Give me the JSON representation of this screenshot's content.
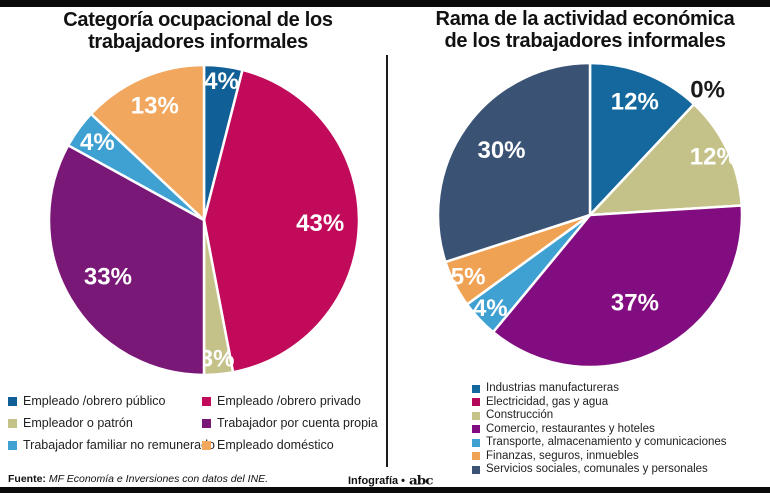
{
  "page": {
    "top_bar_color": "#0a0a0a",
    "bottom_bar_color": "#0a0a0a",
    "background": "#ffffff"
  },
  "footer": {
    "source_label": "Fuente:",
    "source_text": "MF Economía e Inversiones con datos del INE.",
    "credit_label": "Infografía •",
    "brand_logo_text": "abc"
  },
  "chart_data": [
    {
      "type": "pie",
      "title": "Categoría ocupacional de los trabajadores informales",
      "start_angle_deg": 0,
      "direction": "clockwise",
      "legend_position": "bottom-two-columns",
      "label_suffix": "%",
      "slices": [
        {
          "label": "Empleado /obrero público",
          "value": 4,
          "color": "#115f97",
          "label_color": "#ffffff",
          "label_r": 0.9
        },
        {
          "label": "Empleado /obrero privado",
          "value": 43,
          "color": "#c10a5a",
          "label_color": "#ffffff",
          "label_r": 0.75
        },
        {
          "label": "Empleador o patrón",
          "value": 3,
          "color": "#c5c289",
          "label_color": "#ffffff",
          "label_r": 0.9
        },
        {
          "label": "Trabajador por cuenta propia",
          "value": 33,
          "color": "#7a1878",
          "label_color": "#ffffff",
          "label_r": 0.72
        },
        {
          "label": "Trabajador familiar no remunerado",
          "value": 4,
          "color": "#3fa0d2",
          "label_color": "#ffffff",
          "label_r": 0.85
        },
        {
          "label": "Empleado doméstico",
          "value": 13,
          "color": "#f2a75f",
          "label_color": "#ffffff",
          "label_r": 0.8
        }
      ]
    },
    {
      "type": "pie",
      "title": "Rama de la actividad económica de los trabajadores informales",
      "start_angle_deg": 0,
      "direction": "clockwise",
      "legend_position": "bottom-single-column",
      "label_suffix": "%",
      "slices": [
        {
          "label": "Industrias manufactureras",
          "value": 12,
          "color": "#15689e",
          "label_color": "#ffffff",
          "label_r": 0.8
        },
        {
          "label": "Electricidad, gas y agua",
          "value": 0,
          "color": "#b5085a",
          "label_color": "#1a1a1a",
          "label_r": 1.13
        },
        {
          "label": "Construcción",
          "value": 12,
          "color": "#c5c289",
          "label_color": "#ffffff",
          "label_r": 0.9
        },
        {
          "label": "Comercio, restaurantes y hoteles",
          "value": 37,
          "color": "#820d80",
          "label_color": "#ffffff",
          "label_r": 0.65
        },
        {
          "label": "Transporte, almacenamiento y comunicaciones",
          "value": 4,
          "color": "#3fa0d2",
          "label_color": "#ffffff",
          "label_r": 0.9
        },
        {
          "label": "Finanzas, seguros, inmuebles",
          "value": 5,
          "color": "#f0a254",
          "label_color": "#ffffff",
          "label_r": 0.9
        },
        {
          "label": "Servicios sociales, comunales y personales",
          "value": 30,
          "color": "#3a5274",
          "label_color": "#ffffff",
          "label_r": 0.72
        }
      ]
    }
  ]
}
